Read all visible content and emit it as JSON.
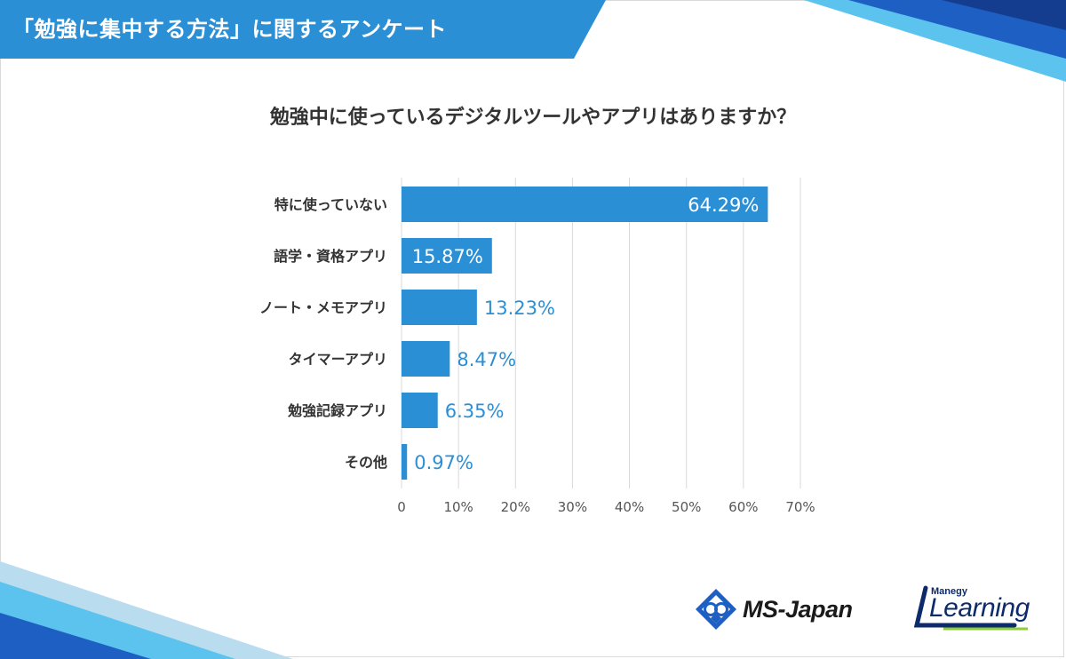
{
  "header": {
    "title": "「勉強に集中する方法」に関するアンケート",
    "banner_color": "#2b8fd6"
  },
  "question": "勉強中に使っているデジタルツールやアプリはありますか？",
  "chart_data": {
    "type": "bar",
    "orientation": "horizontal",
    "title": "勉強中に使っているデジタルツールやアプリはありますか？",
    "categories": [
      "特に使っていない",
      "語学・資格アプリ",
      "ノート・メモアプリ",
      "タイマーアプリ",
      "勉強記録アプリ",
      "その他"
    ],
    "values": [
      64.29,
      15.87,
      13.23,
      8.47,
      6.35,
      0.97
    ],
    "value_labels": [
      "64.29%",
      "15.87%",
      "13.23%",
      "8.47%",
      "6.35%",
      "0.97%"
    ],
    "xlim": [
      0,
      70
    ],
    "xticks": [
      "0",
      "10%",
      "20%",
      "30%",
      "40%",
      "50%",
      "60%",
      "70%"
    ],
    "grid": true,
    "bar_color": "#2b8fd6",
    "label_color": "#2b8fd6"
  },
  "logos": {
    "ms_japan": "MS-Japan",
    "learning_small": "Manegy",
    "learning_big": "Learning"
  }
}
